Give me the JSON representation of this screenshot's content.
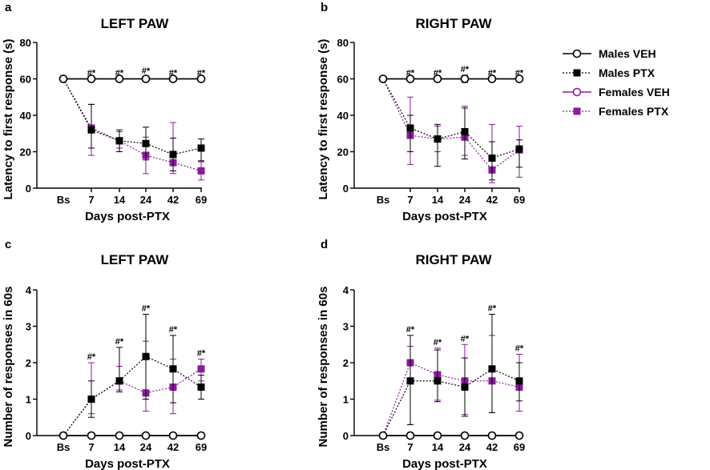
{
  "legend": {
    "items": [
      {
        "label": "Males VEH",
        "color": "#000000",
        "marker": "circle-open",
        "line": "solid"
      },
      {
        "label": "Males PTX",
        "color": "#000000",
        "marker": "square-filled",
        "line": "dotted"
      },
      {
        "label": "Females VEH",
        "color": "#8B1A9C",
        "marker": "circle-open",
        "line": "solid"
      },
      {
        "label": "Females PTX",
        "color": "#8B1A9C",
        "marker": "square-filled",
        "line": "dotted"
      }
    ]
  },
  "colors": {
    "male": "#000000",
    "female": "#8B1A9C"
  },
  "chart_data": [
    {
      "panel": "a",
      "type": "line",
      "title": "LEFT PAW",
      "xlabel": "Days post-PTX",
      "ylabel": "Latency to first response (s)",
      "categories": [
        "Bs",
        "7",
        "14",
        "24",
        "42",
        "69"
      ],
      "ylim": [
        0,
        80
      ],
      "yticks": [
        0,
        20,
        40,
        60,
        80
      ],
      "significance": [
        "",
        "#*",
        "#*",
        "#*",
        "#*",
        "#*"
      ],
      "series": [
        {
          "name": "Males VEH",
          "values": [
            60,
            60,
            60,
            60,
            60,
            60
          ],
          "err_lo": [
            0,
            0,
            0,
            1,
            0,
            0
          ],
          "err_hi": [
            0,
            0,
            0,
            1,
            0,
            0
          ]
        },
        {
          "name": "Males PTX",
          "values": [
            60,
            32,
            26,
            24.5,
            18.5,
            22
          ],
          "err_lo": [
            0,
            10,
            6,
            9,
            9,
            7
          ],
          "err_hi": [
            0,
            14,
            6,
            9,
            9,
            5
          ]
        },
        {
          "name": "Females VEH",
          "values": [
            60,
            60,
            60,
            60,
            60,
            60
          ],
          "err_lo": [
            0,
            0,
            0,
            0,
            0,
            0
          ],
          "err_hi": [
            0,
            0,
            0,
            0,
            0,
            0
          ]
        },
        {
          "name": "Females PTX",
          "values": [
            60,
            33,
            26,
            18,
            14,
            9.5
          ],
          "err_lo": [
            0,
            15,
            4,
            10,
            6,
            5
          ],
          "err_hi": [
            0,
            13,
            5,
            10,
            22,
            5
          ]
        }
      ]
    },
    {
      "panel": "b",
      "type": "line",
      "title": "RIGHT PAW",
      "xlabel": "Days post-PTX",
      "ylabel": "Latency to first response (s)",
      "categories": [
        "Bs",
        "7",
        "14",
        "24",
        "42",
        "69"
      ],
      "ylim": [
        0,
        80
      ],
      "yticks": [
        0,
        20,
        40,
        60,
        80
      ],
      "significance": [
        "",
        "#*",
        "#*",
        "#*",
        "#*",
        "#*"
      ],
      "series": [
        {
          "name": "Males VEH",
          "values": [
            60,
            60,
            60,
            60,
            60,
            60
          ],
          "err_lo": [
            0,
            0,
            0,
            2,
            0,
            0
          ],
          "err_hi": [
            0,
            0,
            0,
            2,
            0,
            0
          ]
        },
        {
          "name": "Males PTX",
          "values": [
            60,
            33,
            27,
            31,
            16.5,
            21.5
          ],
          "err_lo": [
            0,
            13,
            15,
            15,
            12,
            10
          ],
          "err_hi": [
            0,
            7,
            8,
            13,
            9,
            5
          ]
        },
        {
          "name": "Females VEH",
          "values": [
            60,
            60,
            60,
            60,
            60,
            60
          ],
          "err_lo": [
            0,
            0,
            0,
            0,
            0,
            0
          ],
          "err_hi": [
            0,
            0,
            0,
            0,
            0,
            0
          ]
        },
        {
          "name": "Females PTX",
          "values": [
            60,
            29,
            27,
            28,
            10,
            21
          ],
          "err_lo": [
            0,
            16,
            7,
            10,
            7,
            15
          ],
          "err_hi": [
            0,
            21,
            7,
            17,
            25,
            13
          ]
        }
      ]
    },
    {
      "panel": "c",
      "type": "line",
      "title": "LEFT PAW",
      "xlabel": "Days post-PTX",
      "ylabel": "Number of responses in 60s",
      "categories": [
        "Bs",
        "7",
        "14",
        "24",
        "42",
        "69"
      ],
      "ylim": [
        0,
        4
      ],
      "yticks": [
        0,
        1,
        2,
        3,
        4
      ],
      "significance": [
        "",
        "#*",
        "#*",
        "#*",
        "#*",
        "#*"
      ],
      "series": [
        {
          "name": "Males VEH",
          "values": [
            0,
            0,
            0,
            0,
            0,
            0
          ],
          "err_lo": [
            0,
            0,
            0,
            0,
            0,
            0
          ],
          "err_hi": [
            0,
            0,
            0,
            0,
            0,
            0
          ]
        },
        {
          "name": "Males PTX",
          "values": [
            0,
            1,
            1.5,
            2.17,
            1.83,
            1.33
          ],
          "err_lo": [
            0,
            0.5,
            0.3,
            1.17,
            0.93,
            0.33
          ],
          "err_hi": [
            0,
            0.5,
            0.92,
            1.16,
            0.92,
            0.33
          ]
        },
        {
          "name": "Females VEH",
          "values": [
            0,
            0,
            0,
            0,
            0,
            0
          ],
          "err_lo": [
            0,
            0,
            0,
            0,
            0,
            0
          ],
          "err_hi": [
            0,
            0,
            0,
            0,
            0,
            0
          ]
        },
        {
          "name": "Females PTX",
          "values": [
            0,
            1,
            1.5,
            1.17,
            1.33,
            1.83
          ],
          "err_lo": [
            0,
            0.4,
            0.25,
            0.5,
            0.73,
            0.33
          ],
          "err_hi": [
            0,
            1,
            0.4,
            1.42,
            0.77,
            0.27
          ]
        }
      ]
    },
    {
      "panel": "d",
      "type": "line",
      "title": "RIGHT PAW",
      "xlabel": "Days post-PTX",
      "ylabel": "Number of responses in 60s",
      "categories": [
        "Bs",
        "7",
        "14",
        "24",
        "42",
        "69"
      ],
      "ylim": [
        0,
        4
      ],
      "yticks": [
        0,
        1,
        2,
        3,
        4
      ],
      "significance": [
        "",
        "#*",
        "#*",
        "#*",
        "#*",
        "#*"
      ],
      "series": [
        {
          "name": "Males VEH",
          "values": [
            0,
            0,
            0,
            0,
            0,
            0
          ],
          "err_lo": [
            0,
            0,
            0,
            0,
            0,
            0
          ],
          "err_hi": [
            0,
            0,
            0,
            0,
            0,
            0
          ]
        },
        {
          "name": "Males PTX",
          "values": [
            0,
            1.5,
            1.5,
            1.33,
            1.83,
            1.5
          ],
          "err_lo": [
            0,
            1.2,
            0.57,
            0.8,
            1.2,
            0.55
          ],
          "err_hi": [
            0,
            1.25,
            0.85,
            0.8,
            1.5,
            0.5
          ]
        },
        {
          "name": "Females VEH",
          "values": [
            0,
            0,
            0,
            0,
            0,
            0
          ],
          "err_lo": [
            0,
            0,
            0,
            0,
            0,
            0
          ],
          "err_hi": [
            0,
            0,
            0,
            0,
            0,
            0
          ]
        },
        {
          "name": "Females PTX",
          "values": [
            0,
            2,
            1.67,
            1.5,
            1.5,
            1.33
          ],
          "err_lo": [
            0,
            1.7,
            0.7,
            0.92,
            0.87,
            0.66
          ],
          "err_hi": [
            0,
            0.45,
            0.73,
            1,
            1.25,
            0.9
          ]
        }
      ]
    }
  ]
}
